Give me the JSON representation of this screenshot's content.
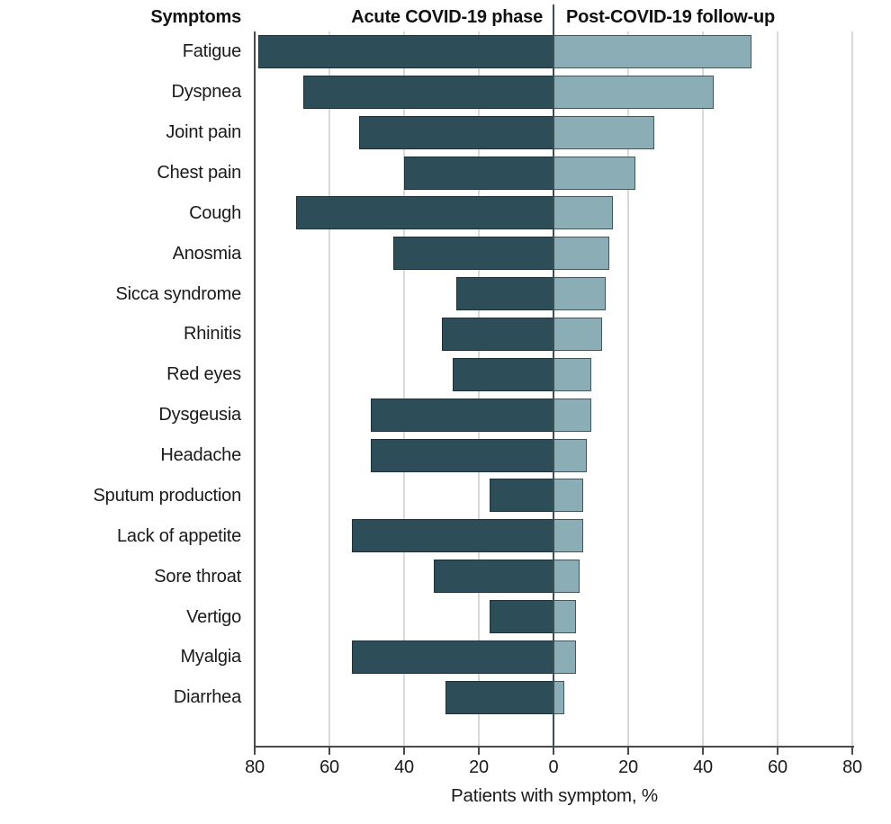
{
  "figure": {
    "column_header": "Symptoms",
    "left_header": "Acute COVID-19 phase",
    "right_header": "Post-COVID-19 follow-up",
    "x_axis_title": "Patients with symptom, %"
  },
  "colors": {
    "acute_bar_fill": "#2d4e59",
    "acute_bar_border": "#1b323b",
    "followup_bar_fill": "#8badb5",
    "followup_bar_border": "#41585f",
    "gridline": "#d9d9d9",
    "axis_line": "#4a4a4a",
    "center_line": "#3c4f56",
    "text": "#1a1a1a"
  },
  "chart_data": {
    "type": "bar",
    "orientation": "diverging-horizontal",
    "title": "",
    "xlabel": "Patients with symptom, %",
    "legend_position": "column headers above plot",
    "grid": true,
    "axis": {
      "min": 0,
      "max": 80,
      "step": 20,
      "tick_values": [
        -80,
        -60,
        -40,
        -20,
        0,
        20,
        40,
        60,
        80
      ],
      "tick_labels": [
        "80",
        "60",
        "40",
        "20",
        "0",
        "20",
        "40",
        "60",
        "80"
      ]
    },
    "categories": [
      "Fatigue",
      "Dyspnea",
      "Joint pain",
      "Chest pain",
      "Cough",
      "Anosmia",
      "Sicca syndrome",
      "Rhinitis",
      "Red eyes",
      "Dysgeusia",
      "Headache",
      "Sputum production",
      "Lack of appetite",
      "Sore throat",
      "Vertigo",
      "Myalgia",
      "Diarrhea"
    ],
    "series": [
      {
        "name": "Acute COVID-19 phase",
        "direction": "left",
        "color": "#2d4e59",
        "values": [
          79,
          67,
          52,
          40,
          69,
          43,
          26,
          30,
          27,
          49,
          49,
          17,
          54,
          32,
          17,
          54,
          29
        ]
      },
      {
        "name": "Post-COVID-19 follow-up",
        "direction": "right",
        "color": "#8badb5",
        "values": [
          53,
          43,
          27,
          22,
          16,
          15,
          14,
          13,
          10,
          10,
          9,
          8,
          8,
          7,
          6,
          6,
          3
        ]
      }
    ]
  }
}
